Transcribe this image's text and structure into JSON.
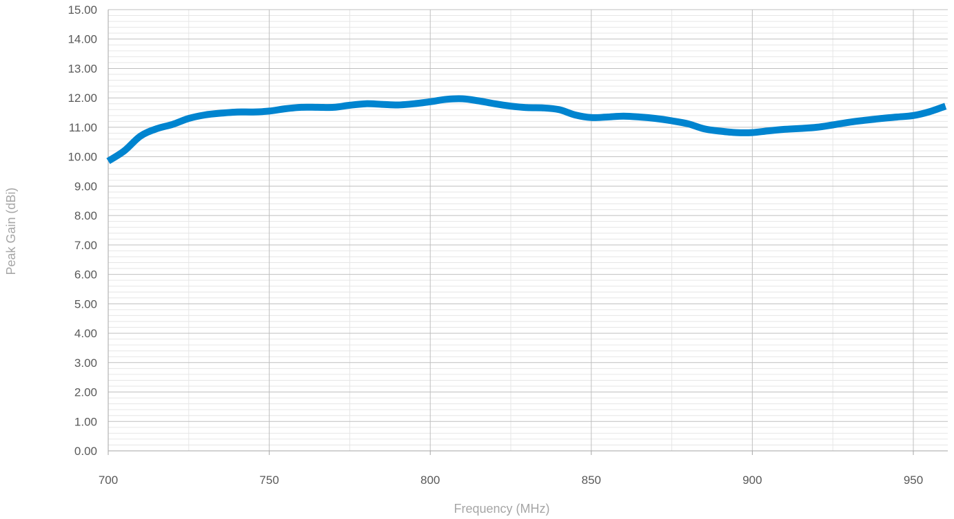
{
  "chart_data": {
    "type": "line",
    "title": "",
    "xlabel": "Frequency (MHz)",
    "ylabel": "Peak Gain (dBi)",
    "xlim": [
      700,
      960
    ],
    "ylim": [
      0,
      15
    ],
    "x_ticks": [
      "700",
      "750",
      "800",
      "850",
      "900",
      "950"
    ],
    "y_ticks": [
      "0.00",
      "1.00",
      "2.00",
      "3.00",
      "4.00",
      "5.00",
      "6.00",
      "7.00",
      "8.00",
      "9.00",
      "10.00",
      "11.00",
      "12.00",
      "13.00",
      "14.00",
      "15.00"
    ],
    "grid": true,
    "legend": "none",
    "series": [
      {
        "color": "#0084cf",
        "x": [
          700,
          705,
          710,
          715,
          720,
          725,
          730,
          735,
          740,
          745,
          750,
          755,
          760,
          765,
          770,
          775,
          780,
          785,
          790,
          795,
          800,
          805,
          810,
          815,
          820,
          825,
          830,
          835,
          840,
          845,
          850,
          855,
          860,
          865,
          870,
          875,
          880,
          885,
          890,
          895,
          900,
          905,
          910,
          915,
          920,
          925,
          930,
          935,
          940,
          945,
          950,
          955,
          960
        ],
        "y": [
          9.85,
          10.2,
          10.7,
          10.95,
          11.1,
          11.3,
          11.42,
          11.48,
          11.52,
          11.52,
          11.55,
          11.63,
          11.68,
          11.68,
          11.68,
          11.75,
          11.8,
          11.78,
          11.76,
          11.8,
          11.87,
          11.95,
          11.97,
          11.9,
          11.8,
          11.72,
          11.67,
          11.66,
          11.6,
          11.42,
          11.33,
          11.35,
          11.38,
          11.35,
          11.3,
          11.22,
          11.12,
          10.95,
          10.87,
          10.82,
          10.82,
          10.88,
          10.93,
          10.96,
          11.0,
          11.08,
          11.17,
          11.24,
          11.3,
          11.35,
          11.4,
          11.53,
          11.72
        ]
      }
    ]
  }
}
